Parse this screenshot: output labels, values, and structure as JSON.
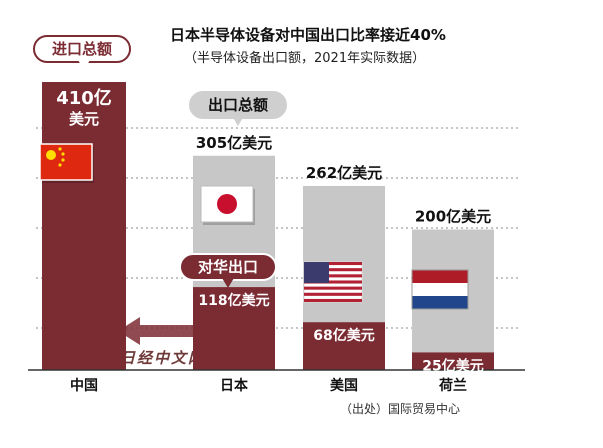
{
  "title": "日本半导体设备对中国出口比率接近40%",
  "subtitle": "（半导体设备出口额，2021年实际数据）",
  "source": "（出处）国际贸易中心",
  "watermark": "日经中文网",
  "badges": {
    "import_total": "进口总额",
    "export_total": "出口总额",
    "to_china": "对华出口"
  },
  "colors": {
    "maroon": "#7b2b32",
    "gray": "#c7c7c7",
    "text": "#111111",
    "white": "#ffffff"
  },
  "chart_data": {
    "type": "bar",
    "title": "日本半导体设备对中国出口比率接近40%",
    "subtitle": "（半导体设备出口额，2021年实际数据）",
    "unit": "亿美元",
    "categories": [
      "中国",
      "日本",
      "美国",
      "荷兰"
    ],
    "series": [
      {
        "name": "出口总额",
        "values": [
          null,
          305,
          262,
          200
        ]
      },
      {
        "name": "对华出口",
        "values": [
          null,
          118,
          68,
          25
        ]
      },
      {
        "name": "进口总额",
        "values": [
          410,
          null,
          null,
          null
        ]
      }
    ],
    "labels": {
      "china_import": [
        "410亿",
        "美元"
      ],
      "total_export": [
        "305亿美元",
        "262亿美元",
        "200亿美元"
      ],
      "china_export": [
        "118亿美元",
        "68亿美元",
        "25亿美元"
      ]
    },
    "ylim": [
      0,
      460
    ],
    "grid": true,
    "flags": [
      "china-flag",
      "japan-flag",
      "usa-flag",
      "netherlands-flag"
    ]
  }
}
